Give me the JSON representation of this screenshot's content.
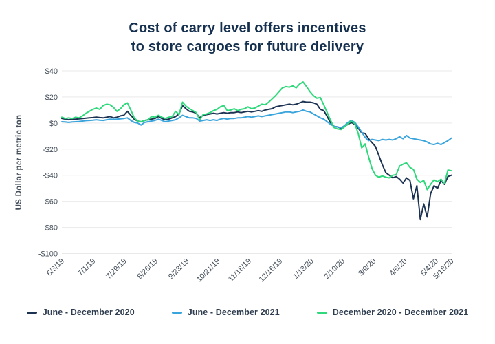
{
  "title": {
    "line1": "Cost of carry level offers incentives",
    "line2": "to store cargoes for future delivery"
  },
  "colors": {
    "title_text": "#16304f",
    "axis_text": "#454f5b",
    "legend_text": "#2d3c4e",
    "grid": "#e9e9e9",
    "navy": "#1b3252",
    "blue": "#3aa4dc",
    "green": "#2dd97a",
    "background": "#ffffff"
  },
  "chart_data": {
    "type": "line",
    "title": "Cost of carry level offers incentives to store cargoes for future delivery",
    "xlabel": "",
    "ylabel": "US Dollar per metric ton",
    "ylim": [
      -100,
      40
    ],
    "grid": "horizontal",
    "legend_position": "bottom",
    "total_weeks": 50,
    "yticks": [
      {
        "label": "$40",
        "value": 40
      },
      {
        "label": "$20",
        "value": 20
      },
      {
        "label": "$0",
        "value": 0
      },
      {
        "label": "-$20",
        "value": -20
      },
      {
        "label": "-$40",
        "value": -40
      },
      {
        "label": "-$60",
        "value": -60
      },
      {
        "label": "-$80",
        "value": -80
      },
      {
        "label": "-$100",
        "value": -100
      }
    ],
    "xticks": [
      {
        "label": "6/3/19",
        "weeks": 0
      },
      {
        "label": "7/1/19",
        "weeks": 4
      },
      {
        "label": "7/29/19",
        "weeks": 8
      },
      {
        "label": "8/26/19",
        "weeks": 12
      },
      {
        "label": "9/23/19",
        "weeks": 16
      },
      {
        "label": "10/21/19",
        "weeks": 20
      },
      {
        "label": "11/18/19",
        "weeks": 24
      },
      {
        "label": "12/16/19",
        "weeks": 28
      },
      {
        "label": "1/13/20",
        "weeks": 32
      },
      {
        "label": "2/10/20",
        "weeks": 36
      },
      {
        "label": "3/9/20",
        "weeks": 40
      },
      {
        "label": "4/6/20",
        "weeks": 44
      },
      {
        "label": "5/4/20",
        "weeks": 48
      },
      {
        "label": "5/18/20",
        "weeks": 50
      }
    ],
    "series": [
      {
        "name": "June - December 2020",
        "color": "#1b3252",
        "values": [
          3.5,
          3,
          2.5,
          2.8,
          3,
          3.2,
          3.5,
          3.8,
          4,
          4.2,
          4.5,
          4.2,
          4,
          4.5,
          5,
          4,
          4.5,
          5.5,
          6,
          9,
          6,
          3,
          1.5,
          1,
          2,
          2.5,
          3,
          3.5,
          5,
          3.5,
          2.5,
          3,
          4,
          5,
          7,
          13.5,
          11,
          9,
          8.5,
          7.5,
          4,
          6,
          6.5,
          7,
          7.5,
          7,
          7.5,
          8,
          7.5,
          8,
          8,
          8.5,
          8,
          8.5,
          9,
          8.5,
          9,
          9.5,
          9,
          10,
          10.5,
          11,
          12.5,
          13,
          13.5,
          14,
          14.5,
          14,
          14.5,
          15.5,
          16.5,
          16,
          16,
          15.5,
          14.5,
          10.5,
          9.5,
          5,
          0,
          -2.5,
          -3,
          -4,
          -2.5,
          -1,
          0.5,
          -1,
          -4,
          -7.5,
          -8,
          -12,
          -15,
          -18,
          -25,
          -32,
          -38,
          -40,
          -42,
          -41,
          -43,
          -46,
          -42,
          -44,
          -58,
          -48,
          -74,
          -62,
          -72,
          -54,
          -48,
          -50,
          -44,
          -47,
          -41,
          -40
        ]
      },
      {
        "name": "June - December 2021",
        "color": "#3aa4dc",
        "values": [
          1,
          0.8,
          0.5,
          0.8,
          1,
          1.2,
          1.5,
          1.8,
          2,
          2.2,
          2.5,
          2.2,
          2,
          2.5,
          3,
          2.8,
          3,
          3.2,
          3.5,
          4,
          2,
          0.5,
          0,
          -1.5,
          0.5,
          1,
          1.5,
          2,
          3,
          2,
          1,
          1.5,
          2,
          2.5,
          4,
          6,
          5,
          4,
          4,
          3.5,
          1.5,
          2,
          2.5,
          2,
          2.5,
          2,
          3,
          3.5,
          3,
          3.5,
          3.5,
          4,
          4,
          4.5,
          5,
          4.5,
          5,
          5.5,
          5,
          5.5,
          6,
          6.5,
          7,
          7.5,
          8,
          8.5,
          8.5,
          8,
          8.5,
          9,
          10,
          9,
          8.5,
          7,
          5.5,
          4,
          3,
          1,
          -1,
          -2.5,
          -3,
          -3.5,
          -2,
          0.5,
          2,
          0.5,
          -3,
          -7,
          -11,
          -13.5,
          -12.5,
          -13,
          -13.5,
          -12.5,
          -13,
          -12.5,
          -13,
          -12,
          -10.5,
          -12,
          -9.5,
          -11.5,
          -12,
          -12.5,
          -13,
          -13.5,
          -14.5,
          -16,
          -16.5,
          -15.5,
          -16.5,
          -15,
          -13.5,
          -11.5
        ]
      },
      {
        "name": "December 2020 - December 2021",
        "color": "#2dd97a",
        "values": [
          4.5,
          3.5,
          4,
          3.5,
          4.5,
          4,
          5.5,
          7.5,
          9,
          10.5,
          11.5,
          10.5,
          13.5,
          14.5,
          14,
          12,
          9,
          11,
          14,
          15.5,
          10,
          4,
          1.5,
          1,
          2,
          2.5,
          5,
          4.5,
          6,
          4.5,
          3.5,
          4.5,
          5,
          9,
          6.5,
          16,
          13,
          11,
          9.5,
          8,
          2.5,
          6.5,
          7,
          8,
          9.5,
          10.5,
          12.5,
          13.5,
          9.5,
          10,
          11,
          9.5,
          10.5,
          11,
          12.5,
          11,
          11.5,
          13,
          14.5,
          14,
          16,
          18.5,
          21,
          24,
          27,
          28,
          27.5,
          28.5,
          27,
          30,
          31.5,
          28,
          24,
          21,
          19,
          19.5,
          14,
          8,
          2,
          -3.5,
          -4.5,
          -5,
          -3,
          -0.5,
          1.5,
          -0.5,
          -8,
          -19,
          -16,
          -26,
          -35,
          -40,
          -41.5,
          -40.5,
          -41.5,
          -42,
          -40,
          -39.5,
          -33,
          -31.5,
          -30.5,
          -34,
          -35.5,
          -43,
          -45.5,
          -44,
          -51,
          -47,
          -43.5,
          -45,
          -43,
          -46.5,
          -36,
          -36.5
        ]
      }
    ]
  }
}
